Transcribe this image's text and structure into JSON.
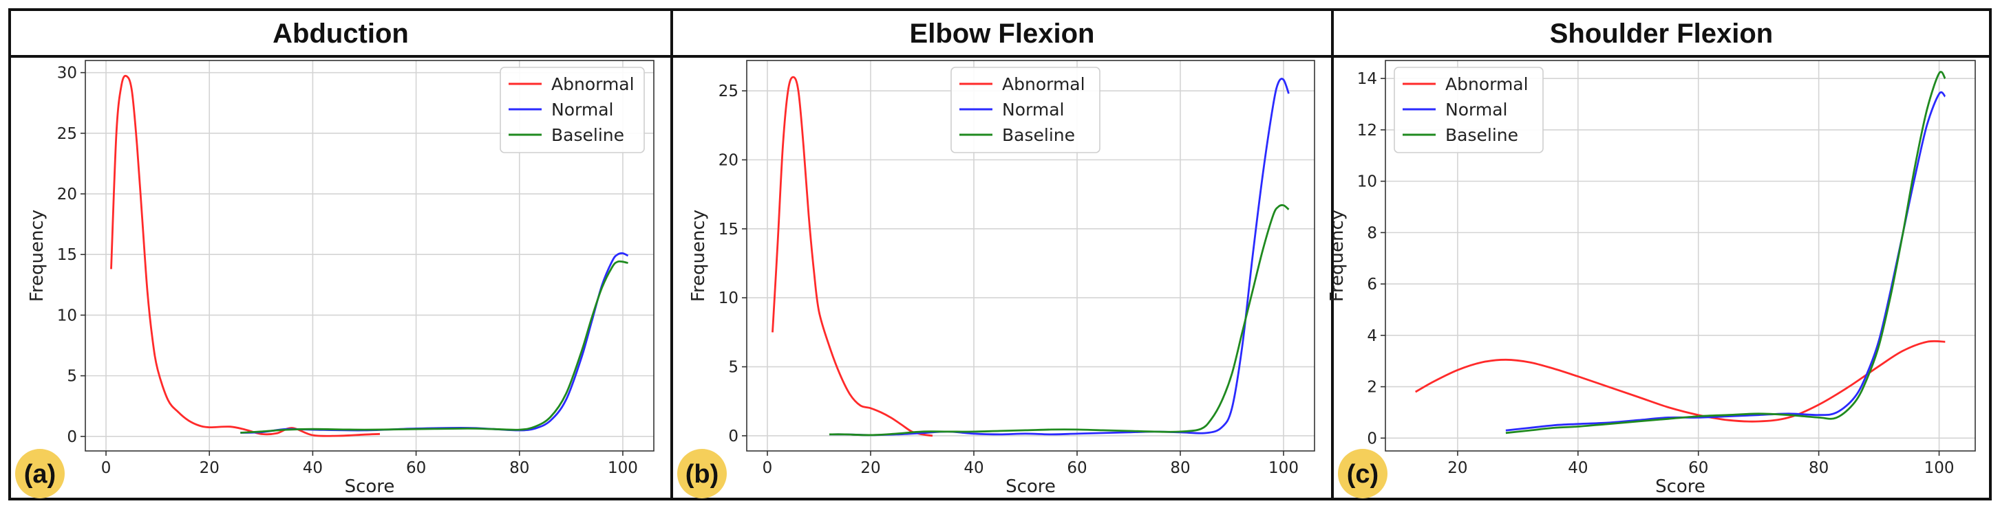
{
  "colors": {
    "Abnormal": "#ff2a2a",
    "Normal": "#2a2aff",
    "Baseline": "#1f8a1f",
    "badge": "#f5cf5a",
    "grid": "#d4d4d4"
  },
  "chart_data": [
    {
      "type": "line",
      "title": "Abduction",
      "panel_label": "(a)",
      "xlabel": "Score",
      "ylabel": "Frequency",
      "xlim": [
        -4,
        106
      ],
      "ylim": [
        -1.2,
        31
      ],
      "xticks": [
        0,
        20,
        40,
        60,
        80,
        100
      ],
      "yticks": [
        0,
        5,
        10,
        15,
        20,
        25,
        30
      ],
      "grid": true,
      "legend_position": "top-right",
      "series": [
        {
          "name": "Abnormal",
          "color": "#ff2a2a",
          "x": [
            1,
            2,
            3,
            4,
            5,
            6,
            7,
            8,
            9,
            10,
            12,
            14,
            16,
            18,
            20,
            24,
            27,
            30,
            33,
            36,
            40,
            45,
            50,
            53
          ],
          "y": [
            13.8,
            25,
            29,
            29.7,
            28.5,
            24,
            18,
            12,
            8,
            5.5,
            3.0,
            2.0,
            1.3,
            0.9,
            0.75,
            0.8,
            0.55,
            0.2,
            0.25,
            0.7,
            0.1,
            0.05,
            0.15,
            0.2
          ]
        },
        {
          "name": "Normal",
          "color": "#2a2aff",
          "x": [
            26,
            30,
            35,
            40,
            50,
            60,
            70,
            75,
            80,
            83,
            86,
            89,
            92,
            94,
            96,
            98,
            99,
            100,
            101
          ],
          "y": [
            0.3,
            0.35,
            0.6,
            0.55,
            0.5,
            0.65,
            0.7,
            0.6,
            0.5,
            0.65,
            1.3,
            3.0,
            6.5,
            9.5,
            12.5,
            14.5,
            15.0,
            15.1,
            14.9
          ]
        },
        {
          "name": "Baseline",
          "color": "#1f8a1f",
          "x": [
            26,
            30,
            35,
            40,
            50,
            60,
            70,
            75,
            80,
            83,
            86,
            89,
            92,
            94,
            96,
            98,
            99,
            100,
            101
          ],
          "y": [
            0.3,
            0.4,
            0.55,
            0.6,
            0.55,
            0.6,
            0.65,
            0.6,
            0.55,
            0.8,
            1.6,
            3.5,
            7.0,
            9.8,
            12.3,
            14.0,
            14.4,
            14.4,
            14.3
          ]
        }
      ]
    },
    {
      "type": "line",
      "title": "Elbow Flexion",
      "panel_label": "(b)",
      "xlabel": "Score",
      "ylabel": "Frequency",
      "xlim": [
        -4,
        106
      ],
      "ylim": [
        -1.1,
        27.2
      ],
      "xticks": [
        0,
        20,
        40,
        60,
        80,
        100
      ],
      "yticks": [
        0,
        5,
        10,
        15,
        20,
        25
      ],
      "grid": true,
      "legend_position": "upper-center",
      "series": [
        {
          "name": "Abnormal",
          "color": "#ff2a2a",
          "x": [
            1,
            2,
            3,
            4,
            5,
            6,
            7,
            8,
            9,
            10,
            12,
            14,
            16,
            18,
            20,
            22,
            24,
            26,
            28,
            30,
            32
          ],
          "y": [
            7.5,
            14,
            21,
            25,
            26,
            25,
            21,
            16,
            12,
            9,
            6.5,
            4.5,
            3.0,
            2.2,
            2.0,
            1.7,
            1.3,
            0.8,
            0.3,
            0.1,
            0.0
          ]
        },
        {
          "name": "Normal",
          "color": "#2a2aff",
          "x": [
            12,
            15,
            20,
            25,
            30,
            35,
            40,
            45,
            50,
            55,
            60,
            65,
            70,
            75,
            80,
            85,
            88,
            90,
            92,
            94,
            96,
            98,
            99,
            100,
            101
          ],
          "y": [
            0.1,
            0.1,
            0.05,
            0.1,
            0.2,
            0.3,
            0.15,
            0.1,
            0.15,
            0.1,
            0.15,
            0.2,
            0.25,
            0.3,
            0.25,
            0.2,
            0.6,
            2.0,
            6.5,
            13,
            19,
            24,
            25.6,
            25.8,
            24.8
          ]
        },
        {
          "name": "Baseline",
          "color": "#1f8a1f",
          "x": [
            12,
            15,
            20,
            25,
            30,
            35,
            40,
            45,
            50,
            55,
            60,
            65,
            70,
            75,
            80,
            84,
            86,
            88,
            90,
            92,
            94,
            96,
            98,
            99,
            100,
            101
          ],
          "y": [
            0.1,
            0.1,
            0.05,
            0.15,
            0.3,
            0.3,
            0.3,
            0.35,
            0.4,
            0.45,
            0.45,
            0.4,
            0.35,
            0.3,
            0.3,
            0.5,
            1.2,
            2.5,
            4.5,
            7.5,
            10.5,
            13.5,
            16,
            16.6,
            16.7,
            16.4
          ]
        }
      ]
    },
    {
      "type": "line",
      "title": "Shoulder Flexion",
      "panel_label": "(c)",
      "xlabel": "Score",
      "ylabel": "Frequency",
      "xlim": [
        8,
        106
      ],
      "ylim": [
        -0.5,
        14.7
      ],
      "xticks": [
        20,
        40,
        60,
        80,
        100
      ],
      "yticks": [
        0,
        2,
        4,
        6,
        8,
        10,
        12,
        14
      ],
      "grid": true,
      "legend_position": "top-left",
      "series": [
        {
          "name": "Abnormal",
          "color": "#ff2a2a",
          "x": [
            13,
            16,
            20,
            24,
            28,
            32,
            36,
            40,
            45,
            50,
            55,
            60,
            65,
            70,
            75,
            80,
            85,
            90,
            94,
            98,
            101
          ],
          "y": [
            1.8,
            2.2,
            2.65,
            2.95,
            3.05,
            2.95,
            2.7,
            2.4,
            2.0,
            1.6,
            1.2,
            0.9,
            0.7,
            0.65,
            0.8,
            1.3,
            2.0,
            2.8,
            3.4,
            3.75,
            3.75
          ]
        },
        {
          "name": "Normal",
          "color": "#2a2aff",
          "x": [
            28,
            32,
            36,
            40,
            45,
            50,
            55,
            60,
            65,
            70,
            75,
            80,
            83,
            86,
            88,
            90,
            92,
            94,
            96,
            98,
            100,
            101
          ],
          "y": [
            0.3,
            0.4,
            0.5,
            0.55,
            0.6,
            0.7,
            0.8,
            0.8,
            0.85,
            0.9,
            0.95,
            0.9,
            1.0,
            1.6,
            2.5,
            3.8,
            5.8,
            8.0,
            10.2,
            12.2,
            13.4,
            13.3
          ]
        },
        {
          "name": "Baseline",
          "color": "#1f8a1f",
          "x": [
            28,
            32,
            36,
            40,
            45,
            50,
            55,
            60,
            65,
            70,
            75,
            80,
            83,
            86,
            88,
            90,
            92,
            94,
            96,
            98,
            100,
            101
          ],
          "y": [
            0.2,
            0.3,
            0.4,
            0.45,
            0.55,
            0.65,
            0.75,
            0.85,
            0.9,
            0.95,
            0.9,
            0.8,
            0.8,
            1.4,
            2.3,
            3.6,
            5.6,
            8.0,
            10.6,
            12.8,
            14.2,
            14.0
          ]
        }
      ]
    }
  ]
}
